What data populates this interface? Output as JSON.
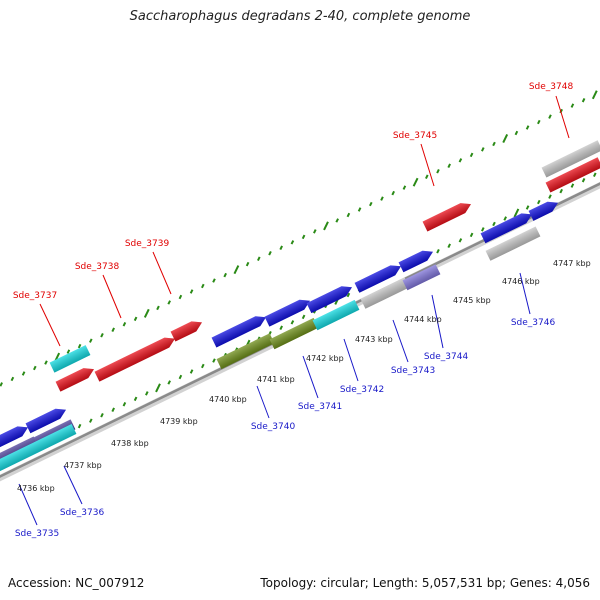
{
  "header": {
    "title": "Saccharophagus degradans 2-40, complete genome"
  },
  "footer": {
    "accession": "Accession: NC_007912",
    "summary": "Topology: circular; Length: 5,057,531 bp; Genes: 4,056"
  },
  "colors": {
    "red": "#e8101a",
    "blue": "#1010dd",
    "cyan": "#13d8df",
    "olive": "#6e8e1a",
    "grey": "#c4c4c4",
    "lavender": "#7f74d8",
    "navy": "#4c3f99",
    "tick": "#2a8a16",
    "backbone": "#8a8a8a",
    "label_red": "#e00000",
    "label_blue": "#1818c8"
  },
  "kbp_labels": [
    "4736 kbp",
    "4737 kbp",
    "4738 kbp",
    "4739 kbp",
    "4740 kbp",
    "4741 kbp",
    "4742 kbp",
    "4743 kbp",
    "4744 kbp",
    "4745 kbp",
    "4746 kbp",
    "4747 kbp"
  ],
  "genes": {
    "top": [
      "Sde_3737",
      "Sde_3738",
      "Sde_3739",
      "Sde_3745",
      "Sde_3748"
    ],
    "bottom": [
      "Sde_3735",
      "Sde_3736",
      "Sde_3740",
      "Sde_3741",
      "Sde_3742",
      "Sde_3743",
      "Sde_3744",
      "Sde_3746"
    ]
  }
}
